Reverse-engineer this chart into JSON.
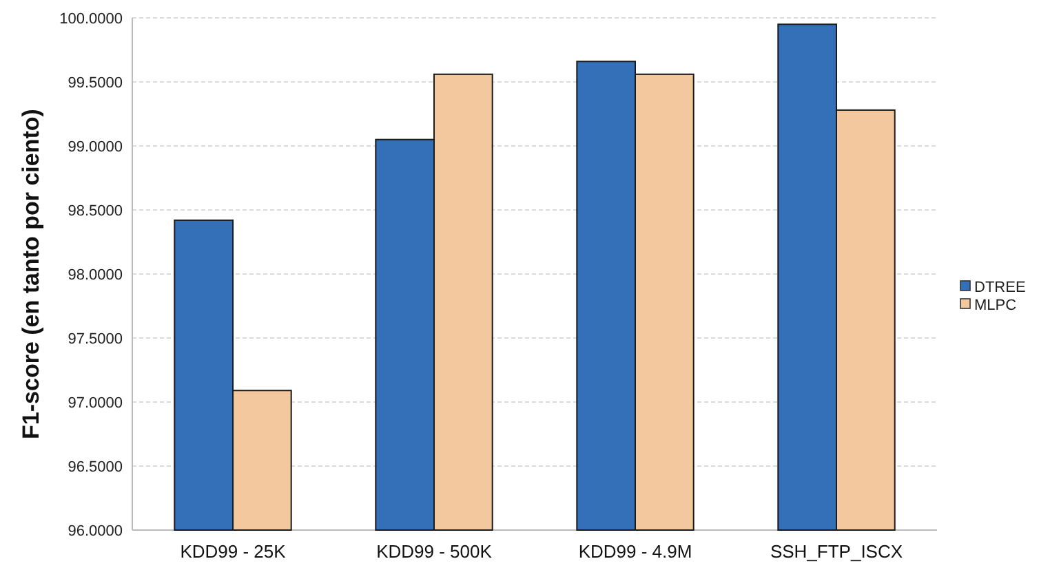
{
  "chart_data": {
    "type": "bar",
    "ylabel": "F1-score (en tanto por ciento)",
    "categories": [
      "KDD99 - 25K",
      "KDD99 - 500K",
      "KDD99 - 4.9M",
      "SSH_FTP_ISCX"
    ],
    "series": [
      {
        "name": "DTREE",
        "color": "#3470b8",
        "values": [
          98.42,
          99.05,
          99.66,
          99.95
        ]
      },
      {
        "name": "MLPC",
        "color": "#f4c89e",
        "values": [
          97.09,
          99.56,
          99.56,
          99.28
        ]
      }
    ],
    "ylim": [
      96,
      100
    ],
    "yticks": [
      {
        "value": 96,
        "label": "96.0000"
      },
      {
        "value": 96.5,
        "label": "96.5000"
      },
      {
        "value": 97,
        "label": "97.0000"
      },
      {
        "value": 97.5,
        "label": "97.5000"
      },
      {
        "value": 98,
        "label": "98.0000"
      },
      {
        "value": 98.5,
        "label": "98.5000"
      },
      {
        "value": 99,
        "label": "99.0000"
      },
      {
        "value": 99.5,
        "label": "99.5000"
      },
      {
        "value": 100,
        "label": "100.0000"
      }
    ],
    "grid": "y",
    "legend": "right"
  }
}
